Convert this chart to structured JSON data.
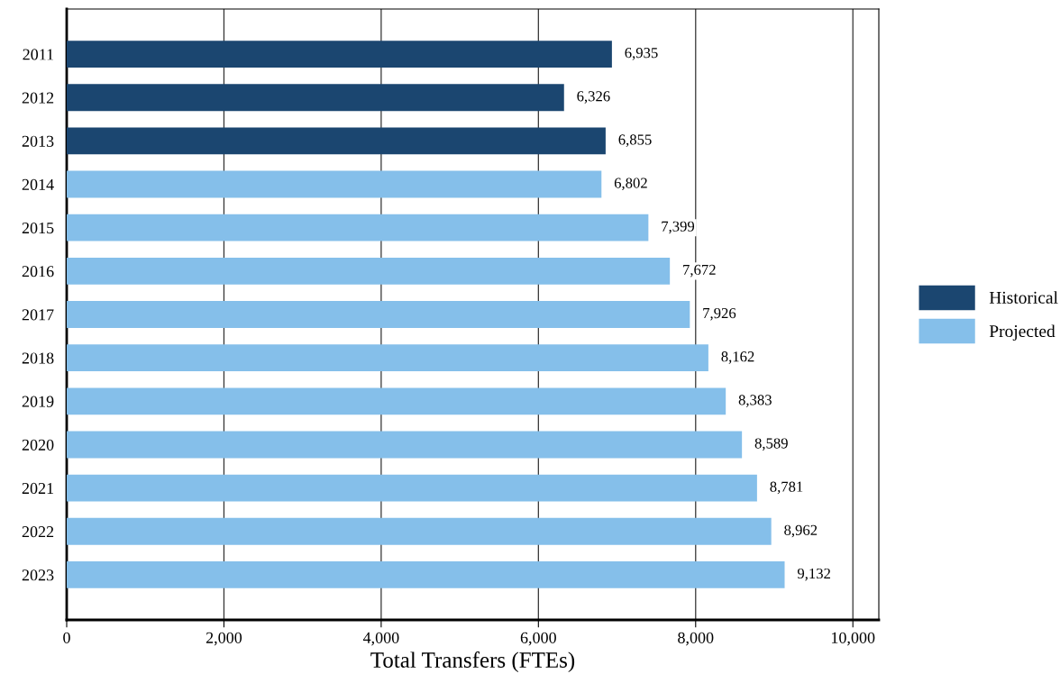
{
  "chart_data": {
    "type": "bar",
    "orientation": "horizontal",
    "xlabel": "Total Transfers (FTEs)",
    "categories": [
      "2011",
      "2012",
      "2013",
      "2014",
      "2015",
      "2016",
      "2017",
      "2018",
      "2019",
      "2020",
      "2021",
      "2022",
      "2023"
    ],
    "series": [
      {
        "name": "Historical",
        "color": "#1b4670",
        "values": [
          6935,
          6326,
          6855,
          null,
          null,
          null,
          null,
          null,
          null,
          null,
          null,
          null,
          null
        ],
        "value_labels": [
          "6,935",
          "6,326",
          "6,855",
          null,
          null,
          null,
          null,
          null,
          null,
          null,
          null,
          null,
          null
        ]
      },
      {
        "name": "Projected",
        "color": "#85bfea",
        "values": [
          null,
          null,
          null,
          6802,
          7399,
          7672,
          7926,
          8162,
          8383,
          8589,
          8781,
          8962,
          9132
        ],
        "value_labels": [
          null,
          null,
          null,
          "6,802",
          "7,399",
          "7,672",
          "7,926",
          "8,162",
          "8,383",
          "8,589",
          "8,781",
          "8,962",
          "9,132"
        ]
      }
    ],
    "xlim": [
      0,
      10330
    ],
    "xticks": [
      {
        "value": 0,
        "label": "0"
      },
      {
        "value": 2000,
        "label": "2,000"
      },
      {
        "value": 4000,
        "label": "4,000"
      },
      {
        "value": 6000,
        "label": "6,000"
      },
      {
        "value": 8000,
        "label": "8,000"
      },
      {
        "value": 10000,
        "label": "10,000"
      }
    ],
    "grid": "x",
    "legend": "right"
  }
}
